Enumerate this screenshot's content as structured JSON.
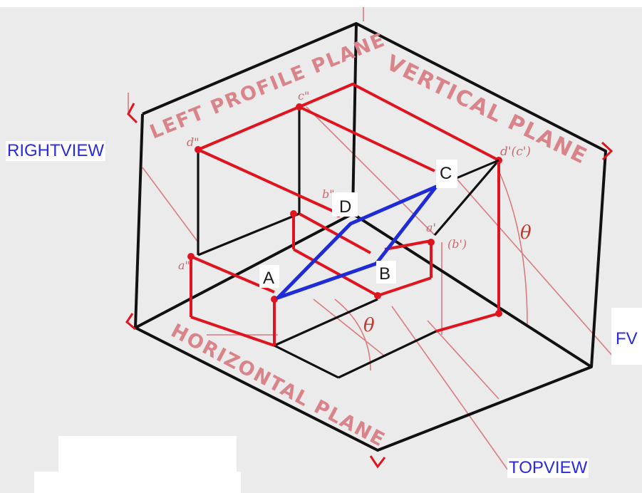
{
  "planes": {
    "left_profile": "LEFT PROFILE PLANE",
    "vertical": "VERTICAL PLANE",
    "horizontal": "HORIZONTAL PLANE"
  },
  "view_labels": {
    "right_view": "RIGHTVIEW",
    "front_view": "FV",
    "top_view": "TOPVIEW"
  },
  "points": {
    "a": "A",
    "b": "B",
    "c": "C",
    "d": "D"
  },
  "projection_labels": {
    "d_profile": "d\"",
    "c_profile": "c\"",
    "b_profile": "b\"",
    "a_profile": "a\"",
    "d_front": "d'(c')",
    "b_front": "(b')",
    "a_front": "a'"
  },
  "angle_symbols": {
    "front": "θ",
    "top": "θ"
  },
  "colors": {
    "background": "#ebebeb",
    "frame": "#111111",
    "projection": "#e0141e",
    "construction": "#d97b80",
    "polygon": "#1f2bd6",
    "view_text": "#2a2ae0"
  }
}
